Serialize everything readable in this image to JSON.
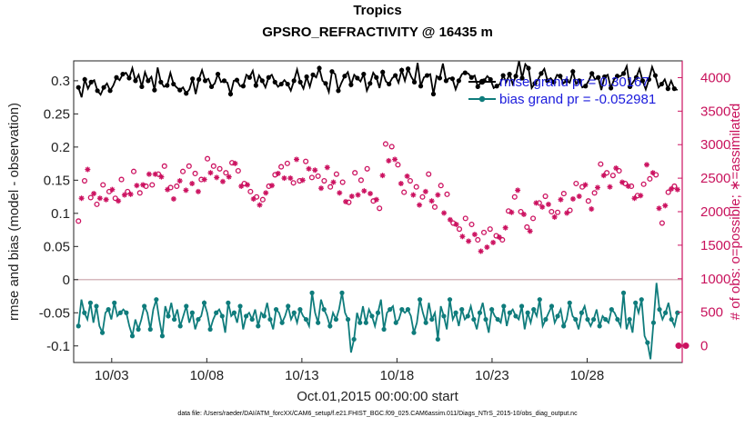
{
  "chart_data": {
    "type": "line",
    "title": "Tropics",
    "subtitle": "GPSRO_REFRACTIVITY @ 16435 m",
    "xlabel": "Oct.01,2015 00:00:00 start",
    "ylabel": "rmse and bias (model - observation)",
    "y2label": "# of obs: o=possible; ∗=assimilated",
    "footer": "data file: /Users/raeder/DAI/ATM_forcXX/CAM6_setup/f.e21.FHIST_BGC.f09_025.CAM6assim.011/Diags_NTrS_2015-10/obs_diag_output.nc",
    "xlim": [
      1,
      33
    ],
    "ylim": [
      -0.125,
      0.33
    ],
    "y2lim": [
      -250,
      4250
    ],
    "x_ticks": [
      3,
      8,
      13,
      18,
      23,
      28
    ],
    "x_tick_labels": [
      "10/03",
      "10/08",
      "10/13",
      "10/18",
      "10/23",
      "10/28"
    ],
    "y_ticks": [
      -0.1,
      -0.05,
      0,
      0.05,
      0.1,
      0.15,
      0.2,
      0.25,
      0.3
    ],
    "y_tick_labels": [
      "-0.1",
      "-0.05",
      "0",
      "0.05",
      "0.1",
      "0.15",
      "0.2",
      "0.25",
      "0.3"
    ],
    "y2_ticks": [
      0,
      500,
      1000,
      1500,
      2000,
      2500,
      3000,
      3500,
      4000
    ],
    "y2_tick_labels": [
      "0",
      "500",
      "1000",
      "1500",
      "2000",
      "2500",
      "3000",
      "3500",
      "4000"
    ],
    "series": [
      {
        "name": "rmse grand pr = 0.30167",
        "axis": "left",
        "marker": "filled-circle",
        "values": [
          0.29,
          0.275,
          0.302,
          0.288,
          0.298,
          0.301,
          0.285,
          0.279,
          0.29,
          0.296,
          0.285,
          0.293,
          0.305,
          0.301,
          0.31,
          0.312,
          0.304,
          0.319,
          0.3,
          0.309,
          0.291,
          0.313,
          0.3,
          0.306,
          0.286,
          0.32,
          0.298,
          0.291,
          0.293,
          0.312,
          0.295,
          0.29,
          0.286,
          0.29,
          0.281,
          0.287,
          0.303,
          0.28,
          0.302,
          0.316,
          0.3,
          0.303,
          0.291,
          0.296,
          0.31,
          0.298,
          0.3,
          0.297,
          0.28,
          0.3,
          0.301,
          0.292,
          0.292,
          0.309,
          0.305,
          0.315,
          0.293,
          0.308,
          0.3,
          0.29,
          0.305,
          0.309,
          0.298,
          0.291,
          0.295,
          0.301,
          0.295,
          0.285,
          0.3,
          0.317,
          0.298,
          0.288,
          0.306,
          0.291,
          0.309,
          0.305,
          0.319,
          0.3,
          0.296,
          0.283,
          0.314,
          0.31,
          0.285,
          0.297,
          0.307,
          0.313,
          0.294,
          0.309,
          0.304,
          0.299,
          0.31,
          0.285,
          0.296,
          0.312,
          0.305,
          0.289,
          0.313,
          0.299,
          0.295,
          0.304,
          0.308,
          0.297,
          0.316,
          0.3,
          0.318,
          0.306,
          0.298,
          0.327,
          0.292,
          0.305,
          0.308,
          0.31,
          0.28,
          0.307,
          0.304,
          0.326,
          0.3,
          0.304,
          0.303,
          0.287,
          0.3,
          0.31,
          0.312,
          0.311,
          0.305,
          0.308,
          0.291,
          0.298,
          0.3,
          0.307,
          0.302,
          0.289,
          0.292,
          0.295,
          0.308,
          0.298,
          0.31,
          0.295,
          0.307,
          0.33,
          0.304,
          0.325,
          0.319,
          0.289,
          0.296,
          0.302,
          0.311,
          0.318,
          0.3,
          0.304,
          0.298,
          0.309,
          0.307,
          0.296,
          0.3,
          0.297,
          0.314,
          0.295,
          0.3,
          0.29,
          0.292,
          0.3,
          0.311,
          0.302,
          0.305,
          0.286,
          0.306,
          0.309,
          0.289,
          0.302,
          0.307,
          0.307,
          0.311,
          0.322,
          0.291,
          0.298,
          0.305,
          0.318,
          0.3,
          0.287,
          0.302,
          0.321,
          0.308,
          0.29,
          0.295,
          0.302,
          0.288,
          0.3,
          0.288,
          0.286
        ]
      },
      {
        "name": "bias grand pr = -0.052981",
        "axis": "left",
        "marker": "filled-circle",
        "values": [
          -0.07,
          -0.03,
          -0.05,
          -0.06,
          -0.035,
          -0.065,
          -0.04,
          -0.07,
          -0.08,
          -0.05,
          -0.045,
          -0.06,
          -0.035,
          -0.055,
          -0.05,
          -0.045,
          -0.05,
          -0.07,
          -0.085,
          -0.06,
          -0.075,
          -0.06,
          -0.04,
          -0.05,
          -0.075,
          -0.045,
          -0.03,
          -0.06,
          -0.085,
          -0.04,
          -0.055,
          -0.035,
          -0.06,
          -0.045,
          -0.07,
          -0.055,
          -0.04,
          -0.065,
          -0.05,
          -0.075,
          -0.06,
          -0.055,
          -0.035,
          -0.05,
          -0.075,
          -0.06,
          -0.05,
          -0.045,
          -0.055,
          -0.08,
          -0.035,
          -0.055,
          -0.05,
          -0.065,
          -0.04,
          -0.075,
          -0.055,
          -0.05,
          -0.06,
          -0.045,
          -0.07,
          -0.05,
          -0.055,
          -0.035,
          -0.06,
          -0.075,
          -0.045,
          -0.05,
          -0.065,
          -0.055,
          -0.04,
          -0.06,
          -0.05,
          -0.065,
          -0.045,
          -0.055,
          -0.06,
          -0.07,
          -0.02,
          -0.05,
          -0.065,
          -0.03,
          -0.045,
          -0.055,
          -0.07,
          -0.05,
          -0.06,
          -0.045,
          -0.02,
          -0.05,
          -0.06,
          -0.11,
          -0.09,
          -0.05,
          -0.065,
          -0.04,
          -0.065,
          -0.045,
          -0.055,
          -0.07,
          -0.05,
          -0.03,
          -0.075,
          -0.05,
          -0.045,
          -0.04,
          -0.065,
          -0.06,
          -0.045,
          -0.05,
          -0.045,
          -0.055,
          -0.08,
          -0.065,
          -0.03,
          -0.05,
          -0.065,
          -0.035,
          -0.06,
          -0.05,
          -0.09,
          -0.04,
          -0.055,
          -0.075,
          -0.03,
          -0.06,
          -0.05,
          -0.07,
          -0.045,
          -0.06,
          -0.055,
          -0.04,
          -0.06,
          -0.075,
          -0.05,
          -0.035,
          -0.06,
          -0.08,
          -0.045,
          -0.055,
          -0.06,
          -0.065,
          -0.04,
          -0.07,
          -0.05,
          -0.045,
          -0.055,
          -0.06,
          -0.04,
          -0.075,
          -0.05,
          -0.065,
          -0.045,
          -0.055,
          -0.03,
          -0.07,
          -0.06,
          -0.05,
          -0.04,
          -0.065,
          -0.055,
          -0.045,
          -0.07,
          -0.06,
          -0.035,
          -0.055,
          -0.06,
          -0.075,
          -0.05,
          -0.04,
          -0.06,
          -0.07,
          -0.06,
          -0.045,
          -0.07,
          -0.055,
          -0.06,
          -0.065,
          -0.045,
          -0.05,
          -0.06,
          -0.07,
          -0.02,
          -0.075,
          -0.06,
          -0.08,
          -0.035,
          -0.05,
          -0.03,
          -0.085,
          -0.095,
          -0.12,
          -0.065,
          -0.005,
          -0.045,
          -0.06,
          -0.05,
          -0.035,
          -0.06,
          -0.07,
          -0.05
        ]
      },
      {
        "name": "# of obs possible",
        "axis": "right",
        "marker": "open-circle",
        "values": [
          1860,
          2280,
          2460,
          2690,
          2210,
          2340,
          2110,
          2280,
          2400,
          2260,
          2300,
          2420,
          2200,
          2210,
          2480,
          2310,
          2300,
          2330,
          2600,
          2460,
          2280,
          2480,
          2380,
          2650,
          2400,
          2640,
          2560,
          2600,
          2680,
          2400,
          2360,
          2250,
          2380,
          2520,
          2600,
          2390,
          2680,
          2490,
          2570,
          2380,
          2480,
          2560,
          2790,
          2660,
          2680,
          2580,
          2640,
          2530,
          2580,
          2600,
          2730,
          2810,
          2610,
          2440,
          2420,
          2480,
          2300,
          2260,
          2220,
          2160,
          2180,
          2350,
          2380,
          2460,
          2550,
          2640,
          2670,
          2570,
          2720,
          2570,
          2430,
          2850,
          2460,
          2540,
          2750,
          2710,
          2510,
          2690,
          2530,
          2420,
          2460,
          2740,
          2370,
          2510,
          2560,
          2350,
          2440,
          2210,
          2140,
          2300,
          2580,
          2320,
          2470,
          2380,
          2640,
          2340,
          2160,
          2250,
          2050,
          2620,
          3010,
          2830,
          2970,
          2850,
          2700,
          2490,
          2290,
          2600,
          2460,
          2320,
          2370,
          2160,
          2220,
          2370,
          2560,
          2230,
          2070,
          2320,
          2390,
          2040,
          2260,
          1940,
          1830,
          1870,
          1740,
          1690,
          1900,
          1620,
          1810,
          1720,
          1580,
          1470,
          1690,
          1530,
          1740,
          1600,
          1640,
          1690,
          1580,
          1820,
          2010,
          2060,
          2220,
          2390,
          2000,
          2020,
          1770,
          1770,
          1900,
          2200,
          2130,
          2140,
          2230,
          2180,
          2000,
          1980,
          1990,
          2250,
          2270,
          2040,
          2020,
          2260,
          2420,
          2300,
          2370,
          2470,
          2160,
          2100,
          2280,
          2430,
          2710,
          2610,
          2580,
          2440,
          2540,
          2720,
          2610,
          2510,
          2420,
          2450,
          2380,
          2260,
          2240,
          2310,
          2410,
          2800,
          2490,
          2650,
          2550,
          2110,
          1830,
          2150,
          2290,
          2410,
          2380,
          2400
        ]
      },
      {
        "name": "# of obs assimilated",
        "axis": "right",
        "marker": "asterisk",
        "values": [
          1740,
          2200,
          2370,
          2630,
          2150,
          2270,
          2060,
          2200,
          2320,
          2180,
          2230,
          2330,
          2150,
          2160,
          2390,
          2250,
          2240,
          2260,
          2520,
          2390,
          2210,
          2400,
          2300,
          2560,
          2340,
          2560,
          2480,
          2520,
          2600,
          2330,
          2300,
          2190,
          2300,
          2460,
          2530,
          2320,
          2590,
          2420,
          2490,
          2300,
          2410,
          2480,
          2700,
          2580,
          2600,
          2510,
          2570,
          2450,
          2500,
          2520,
          2660,
          2720,
          2540,
          2380,
          2350,
          2400,
          2230,
          2190,
          2150,
          2100,
          2120,
          2280,
          2300,
          2390,
          2480,
          2570,
          2600,
          2500,
          2650,
          2500,
          2360,
          2780,
          2390,
          2470,
          2680,
          2640,
          2440,
          2620,
          2460,
          2350,
          2390,
          2660,
          2300,
          2440,
          2490,
          2280,
          2370,
          2150,
          2080,
          2230,
          2500,
          2250,
          2400,
          2310,
          2570,
          2270,
          2100,
          2180,
          1990,
          2540,
          2900,
          2760,
          2760,
          2780,
          2630,
          2420,
          2220,
          2530,
          2390,
          2250,
          2300,
          2100,
          2150,
          2300,
          2490,
          2160,
          2010,
          2250,
          2320,
          1980,
          2190,
          1880,
          1770,
          1810,
          1680,
          1630,
          1830,
          1560,
          1740,
          1660,
          1520,
          1410,
          1620,
          1470,
          1680,
          1540,
          1580,
          1620,
          1520,
          1760,
          1940,
          1990,
          2150,
          2320,
          1930,
          1960,
          1710,
          1710,
          1840,
          2130,
          2060,
          2070,
          2160,
          2110,
          1940,
          1920,
          1930,
          2180,
          2200,
          1980,
          1960,
          2190,
          2350,
          2230,
          2300,
          2400,
          2100,
          2040,
          2210,
          2360,
          2640,
          2540,
          2510,
          2370,
          2470,
          2650,
          2540,
          2440,
          2350,
          2380,
          2310,
          2200,
          2180,
          2240,
          2340,
          2700,
          2420,
          2580,
          2480,
          2050,
          1780,
          2090,
          2220,
          2340,
          2310,
          2330
        ]
      }
    ],
    "legend_position": "top-right"
  },
  "colors": {
    "rmse": "#000000",
    "bias": "#0f7c7c",
    "obs": "#cc1260",
    "legend_text": "#1a1adc",
    "zero_line": "#c8a0a8"
  }
}
